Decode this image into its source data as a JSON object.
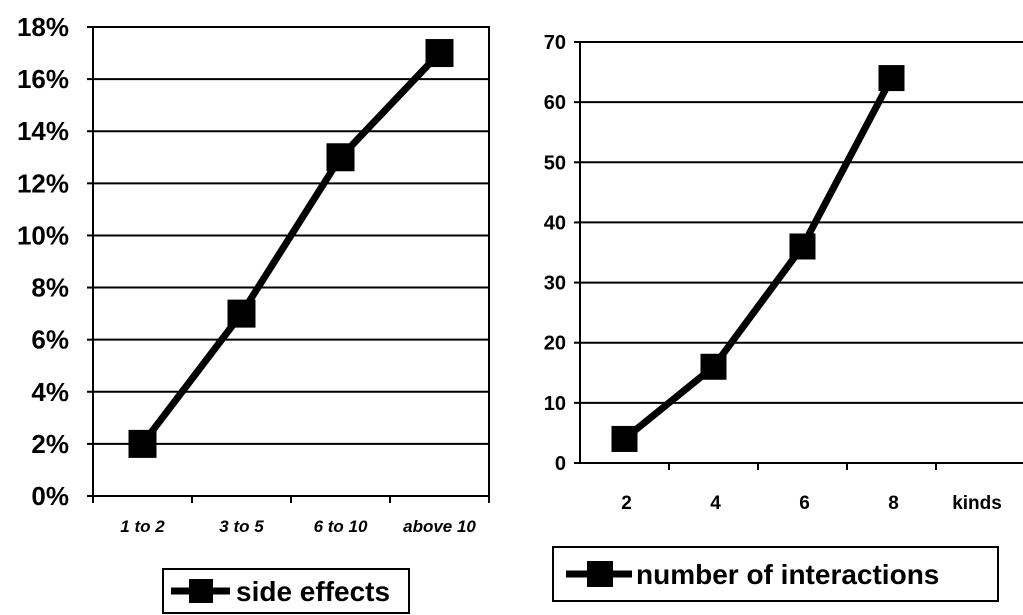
{
  "chart_data": [
    {
      "type": "line",
      "categories": [
        "1 to 2",
        "3 to 5",
        "6 to 10",
        "above 10"
      ],
      "series": [
        {
          "name": "side effects",
          "values": [
            2,
            7,
            13,
            17
          ]
        }
      ],
      "yticks": [
        "0%",
        "2%",
        "4%",
        "6%",
        "8%",
        "10%",
        "12%",
        "14%",
        "16%",
        "18%"
      ],
      "ylim": [
        0,
        18
      ],
      "grid": true,
      "legend": "bottom",
      "color": "#000000"
    },
    {
      "type": "line",
      "categories": [
        "2",
        "4",
        "6",
        "8"
      ],
      "x_unit_label": "kinds",
      "series": [
        {
          "name": "number of interactions",
          "values": [
            4,
            16,
            36,
            64
          ]
        }
      ],
      "yticks": [
        "0",
        "10",
        "20",
        "30",
        "40",
        "50",
        "60",
        "70"
      ],
      "ylim": [
        0,
        70
      ],
      "grid": true,
      "legend": "bottom",
      "color": "#000000"
    }
  ]
}
